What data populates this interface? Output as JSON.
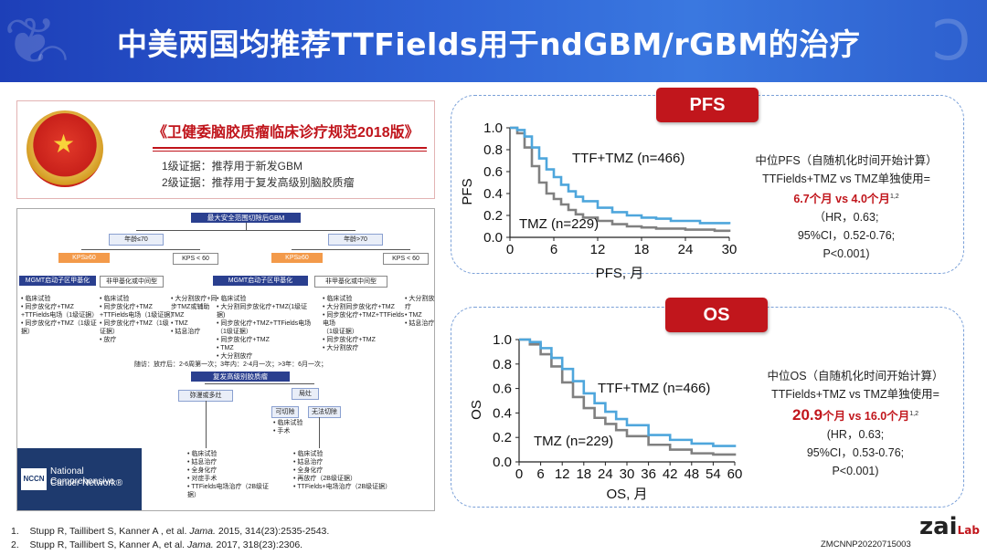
{
  "title": "中美两国均推荐TTFields用于ndGBM/rGBM的治疗",
  "guideline": {
    "title": "《卫健委脑胶质瘤临床诊疗规范2018版》",
    "items": [
      "1级证据：推荐用于新发GBM",
      "2级证据：推荐用于复发高级别脑胶质瘤"
    ]
  },
  "flowchart": {
    "top": "最大安全范围切除后GBM",
    "age_left": "年龄≤70",
    "age_right": "年龄>70",
    "kps_good": "KPS≥60",
    "kps_poor": "KPS < 60",
    "mgmt": "MGMT启动子区甲基化",
    "unmeth": "非甲基化或中间型",
    "col1": [
      "• 临床试验",
      "• 同步放化疗+TMZ",
      "+TTFields电场（1级证据）",
      "• 同步放化疗+TMZ（1级证据）"
    ],
    "col2": [
      "• 临床试验",
      "• 同步放化疗+TMZ",
      "+TTFields电场（1级证据）",
      "• 同步放化疗+TMZ（1级证据）",
      "• 放疗"
    ],
    "col3": [
      "• 大分割放疗+同",
      "步TMZ或辅助TMZ",
      "• TMZ",
      "• 姑息治疗"
    ],
    "col4": [
      "• 临床试验",
      "• 大分割同步放化疗+TMZ(1级证据)",
      "• 同步放化疗+TMZ+TTFields电场（1级证据）",
      "• 同步放化疗+TMZ",
      "• TMZ",
      "• 大分割放疗"
    ],
    "col5": [
      "• 临床试验",
      "• 大分割同步放化疗+TMZ",
      "• 同步放化疗+TMZ+TTFields电场",
      "（1级证据）",
      "• 同步放化疗+TMZ",
      "• 大分割放疗"
    ],
    "col6": [
      "• 大分割放疗",
      "• TMZ",
      "• 姑息治疗"
    ],
    "followup": "随访：放疗后：2-6周第一次；3年内：2-4月一次；>3年：6月一次；",
    "recur": "复发高级别胶质瘤",
    "diffuse": "弥漫或多灶",
    "local": "局灶",
    "resectable": "可切除",
    "unresectable": "无法切除",
    "resect_items": [
      "• 临床试验",
      "• 手术"
    ],
    "left_list": [
      "• 临床试验",
      "• 姑息治疗",
      "• 全身化疗",
      "• 对症手术",
      "• TTFields电场治疗（2B级证据）"
    ],
    "right_list": [
      "• 临床试验",
      "• 姑息治疗",
      "• 全身化疗",
      "• 再放疗（2B级证据）",
      "• TTFields+电场治疗（2B级证据）"
    ],
    "nccn_logo": "NCCN",
    "nccn_line1": "National Comprehensive",
    "nccn_line2": "Cancer Network®"
  },
  "pfs": {
    "tag": "PFS",
    "stat_line1": "中位PFS（自随机化时间开始计算）",
    "stat_line2": "TTFields+TMZ vs TMZ单独使用=",
    "stat_highlight": "6.7个月 vs 4.0个月",
    "stat_sup": "1,2",
    "stat_line4": "（HR，0.63;",
    "stat_line5": "95%CI，0.52-0.76;",
    "stat_line6": "P<0.001)"
  },
  "os": {
    "tag": "OS",
    "stat_line1": "中位OS（自随机化时间开始计算）",
    "stat_line2": "TTFields+TMZ vs TMZ单独使用=",
    "stat_big1": "20.9",
    "stat_mid": "个月 vs 16.0个月",
    "stat_sup": "1,2",
    "stat_line4": "(HR，0.63;",
    "stat_line5": "95%CI，0.53-0.76;",
    "stat_line6": "P<0.001)"
  },
  "references": [
    {
      "num": "1.",
      "pre": "Stupp R, Taillibert S, Kanner A , et al. ",
      "journal": "Jama.",
      "post": " 2015, 314(23):2535-2543."
    },
    {
      "num": "2.",
      "pre": "Stupp R, Taillibert S, Kanner A, et al. ",
      "journal": "Jama.",
      "post": " 2017, 318(23):2306."
    }
  ],
  "code": "ZMCNNP20220715003",
  "brand": {
    "main": "zai",
    "sub": "Lab"
  },
  "chart_data": [
    {
      "type": "line",
      "xlabel": "PFS, 月",
      "ylabel": "PFS",
      "xlim": [
        0,
        30
      ],
      "ylim": [
        0,
        1.0
      ],
      "xticks": [
        0,
        6,
        12,
        18,
        24,
        30
      ],
      "yticks": [
        0,
        0.2,
        0.4,
        0.6,
        0.8,
        1.0
      ],
      "series": [
        {
          "name": "TTF+TMZ (n=466)",
          "color": "#4ea6dc",
          "x": [
            0,
            1,
            2,
            3,
            4,
            5,
            6,
            7,
            8,
            9,
            10,
            12,
            14,
            16,
            18,
            20,
            22,
            24,
            26,
            28,
            30
          ],
          "y": [
            1.0,
            0.98,
            0.92,
            0.82,
            0.72,
            0.62,
            0.55,
            0.48,
            0.42,
            0.37,
            0.33,
            0.27,
            0.23,
            0.2,
            0.18,
            0.17,
            0.15,
            0.15,
            0.13,
            0.13,
            0.12
          ]
        },
        {
          "name": "TMZ (n=229)",
          "color": "#808080",
          "x": [
            0,
            1,
            2,
            3,
            4,
            5,
            6,
            7,
            8,
            9,
            10,
            12,
            14,
            16,
            18,
            20,
            22,
            24,
            26,
            28,
            30
          ],
          "y": [
            1.0,
            0.95,
            0.82,
            0.65,
            0.5,
            0.4,
            0.35,
            0.3,
            0.25,
            0.21,
            0.18,
            0.15,
            0.12,
            0.1,
            0.09,
            0.08,
            0.08,
            0.07,
            0.07,
            0.06,
            0.05
          ]
        }
      ]
    },
    {
      "type": "line",
      "xlabel": "OS, 月",
      "ylabel": "OS",
      "xlim": [
        0,
        60
      ],
      "ylim": [
        0,
        1.0
      ],
      "xticks": [
        0,
        6,
        12,
        18,
        24,
        30,
        36,
        42,
        48,
        54,
        60
      ],
      "yticks": [
        0,
        0.2,
        0.4,
        0.6,
        0.8,
        1.0
      ],
      "series": [
        {
          "name": "TTF+TMZ (n=466)",
          "color": "#4ea6dc",
          "x": [
            0,
            3,
            6,
            9,
            12,
            15,
            18,
            21,
            24,
            27,
            30,
            36,
            42,
            48,
            54,
            60
          ],
          "y": [
            1.0,
            0.98,
            0.93,
            0.85,
            0.76,
            0.66,
            0.56,
            0.48,
            0.41,
            0.35,
            0.3,
            0.22,
            0.18,
            0.15,
            0.13,
            0.12
          ]
        },
        {
          "name": "TMZ (n=229)",
          "color": "#808080",
          "x": [
            0,
            3,
            6,
            9,
            12,
            15,
            18,
            21,
            24,
            27,
            30,
            36,
            42,
            48,
            54,
            60
          ],
          "y": [
            1.0,
            0.96,
            0.88,
            0.78,
            0.65,
            0.53,
            0.44,
            0.36,
            0.31,
            0.26,
            0.21,
            0.14,
            0.1,
            0.07,
            0.06,
            0.05
          ]
        }
      ]
    }
  ]
}
